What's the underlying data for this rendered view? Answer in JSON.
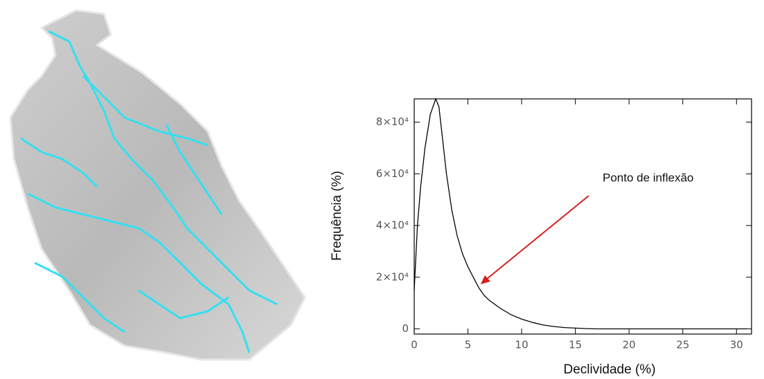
{
  "chart_data": {
    "type": "line",
    "x_label": "Declividade (%)",
    "y_label": "Frequência (%)",
    "annotations": [
      {
        "text": "Ponto de inflexão"
      }
    ],
    "x": [
      0,
      0.3,
      0.6,
      1.0,
      1.5,
      2.0,
      2.3,
      2.6,
      3.0,
      3.5,
      4.0,
      4.5,
      5.0,
      5.5,
      6.0,
      6.5,
      7.0,
      8.0,
      9.0,
      10,
      11,
      12,
      13,
      14,
      15,
      16,
      17,
      20,
      25,
      31
    ],
    "series": [
      {
        "color": "#000000",
        "values": [
          15000,
          40000,
          55000,
          70000,
          83000,
          89000,
          86000,
          75000,
          60000,
          46000,
          36000,
          29000,
          24000,
          20000,
          16000,
          13000,
          11000,
          8000,
          5500,
          3800,
          2500,
          1500,
          900,
          500,
          300,
          100,
          0,
          0,
          0,
          0
        ]
      }
    ],
    "xlim": [
      0,
      31.4
    ],
    "xticks": [
      0,
      5,
      10,
      15,
      20,
      25,
      30
    ],
    "ylim": [
      -2000,
      89000
    ],
    "yticks": [
      0,
      {
        "value": 20000,
        "label": "2×10⁴"
      },
      {
        "value": 40000,
        "label": "4×10⁴"
      },
      {
        "value": 60000,
        "label": "6×10⁴"
      },
      {
        "value": 80000,
        "label": "8×10⁴"
      }
    ]
  }
}
